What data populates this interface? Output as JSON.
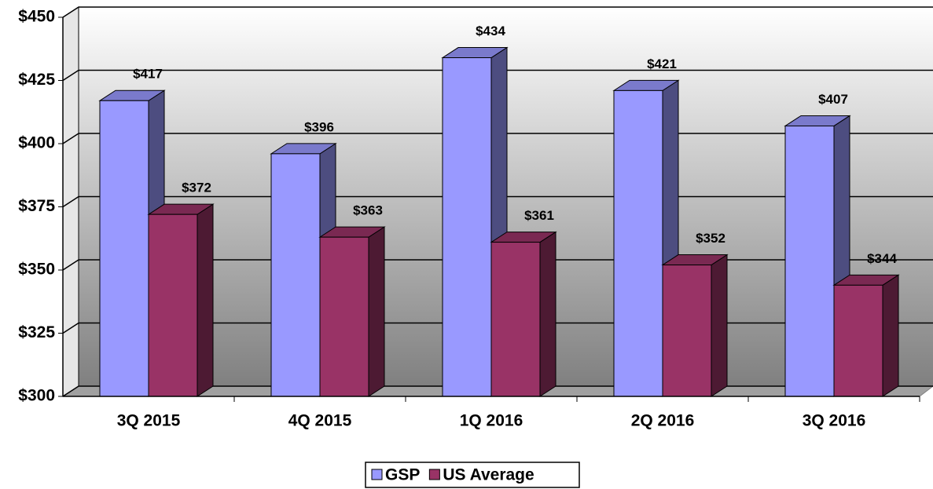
{
  "chart_data": {
    "type": "bar3d",
    "categories": [
      "3Q 2015",
      "4Q 2015",
      "1Q 2016",
      "2Q 2016",
      "3Q 2016"
    ],
    "series": [
      {
        "name": "GSP",
        "color": "#9999ff",
        "values": [
          417,
          396,
          434,
          421,
          407
        ],
        "value_labels": [
          "$417",
          "$396",
          "$434",
          "$421",
          "$407"
        ]
      },
      {
        "name": "US Average",
        "color": "#993366",
        "values": [
          372,
          363,
          361,
          352,
          344
        ],
        "value_labels": [
          "$372",
          "$363",
          "$361",
          "$352",
          "$344"
        ]
      }
    ],
    "ylim": [
      300,
      450
    ],
    "yticks": [
      {
        "value": 300,
        "label": "$300"
      },
      {
        "value": 325,
        "label": "$325"
      },
      {
        "value": 350,
        "label": "$350"
      },
      {
        "value": 375,
        "label": "$375"
      },
      {
        "value": 400,
        "label": "$400"
      },
      {
        "value": 425,
        "label": "$425"
      },
      {
        "value": 450,
        "label": "$450"
      }
    ],
    "grid": true,
    "legend": "bottom"
  }
}
